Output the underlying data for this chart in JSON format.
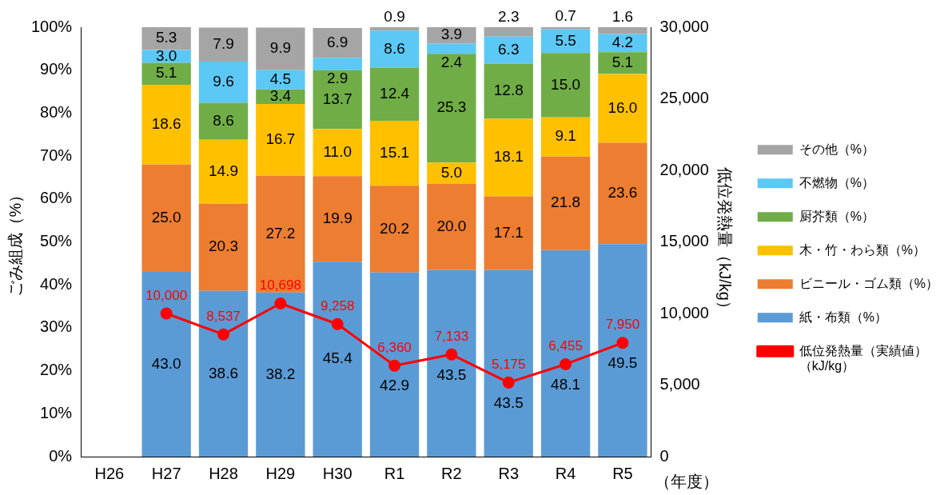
{
  "chart_data": {
    "type": "bar",
    "stacked": true,
    "xlabel": "（年度）",
    "ylabel": "ごみ組成（%）",
    "y2label": "低位発熱量（kJ/kg）",
    "categories": [
      "H26",
      "H27",
      "H28",
      "H29",
      "H30",
      "R1",
      "R2",
      "R3",
      "R4",
      "R5"
    ],
    "ylim": [
      0,
      100
    ],
    "yticks": [
      {
        "value": 0,
        "label": "0%"
      },
      {
        "value": 10,
        "label": "10%"
      },
      {
        "value": 20,
        "label": "20%"
      },
      {
        "value": 30,
        "label": "30%"
      },
      {
        "value": 40,
        "label": "40%"
      },
      {
        "value": 50,
        "label": "50%"
      },
      {
        "value": 60,
        "label": "60%"
      },
      {
        "value": 70,
        "label": "70%"
      },
      {
        "value": 80,
        "label": "80%"
      },
      {
        "value": 90,
        "label": "90%"
      },
      {
        "value": 100,
        "label": "100%"
      }
    ],
    "y2lim": [
      0,
      30000
    ],
    "y2ticks": [
      0,
      {
        "value": 5000,
        "label": "5,000"
      },
      {
        "value": 10000,
        "label": "10,000"
      },
      {
        "value": 15000,
        "label": "15,000"
      },
      {
        "value": 20000,
        "label": "20,000"
      },
      {
        "value": 25000,
        "label": "25,000"
      },
      {
        "value": 30000,
        "label": "30,000"
      }
    ],
    "grid": false,
    "legend": "right",
    "marker": "circle",
    "series": [
      {
        "name": "紙・布類（%）",
        "color": "#5b9bd5",
        "values": [
          null,
          43.0,
          38.6,
          38.2,
          45.4,
          42.9,
          43.5,
          43.5,
          48.1,
          49.5
        ],
        "value_labels": [
          null,
          "43.0",
          "38.6",
          "38.2",
          "45.4",
          "42.9",
          "43.5",
          "43.5",
          "48.1",
          "49.5"
        ]
      },
      {
        "name": "ビニール・ゴム類（%）",
        "color": "#ed7d31",
        "values": [
          null,
          25.0,
          20.3,
          27.2,
          19.9,
          20.2,
          20.0,
          17.1,
          21.8,
          23.6
        ],
        "value_labels": [
          null,
          "25.0",
          "20.3",
          "27.2",
          "19.9",
          "20.2",
          "20.0",
          "17.1",
          "21.8",
          "23.6"
        ]
      },
      {
        "name": "木・竹・わら類（%）",
        "color": "#ffc000",
        "values": [
          null,
          18.6,
          14.9,
          16.7,
          11.0,
          15.1,
          5.0,
          18.1,
          9.1,
          16.0
        ],
        "value_labels": [
          null,
          "18.6",
          "14.9",
          "16.7",
          "11.0",
          "15.1",
          "5.0",
          "18.1",
          "9.1",
          "16.0"
        ]
      },
      {
        "name": "厨芥類（%）",
        "color": "#70ad47",
        "values": [
          null,
          5.1,
          8.6,
          3.4,
          13.7,
          12.4,
          25.3,
          12.8,
          15.0,
          5.1
        ],
        "value_labels": [
          null,
          "5.1",
          "8.6",
          "3.4",
          "13.7",
          "12.4",
          "25.3",
          "12.8",
          "15.0",
          "5.1"
        ]
      },
      {
        "name": "不燃物（%）",
        "color": "#5bc8f5",
        "values": [
          null,
          3.0,
          9.6,
          4.5,
          2.9,
          8.6,
          2.4,
          6.3,
          5.5,
          4.2
        ],
        "value_labels": [
          null,
          "3.0",
          "9.6",
          "4.5",
          "2.9",
          "8.6",
          "2.4",
          "6.3",
          "5.5",
          "4.2"
        ]
      },
      {
        "name": "その他（%）",
        "color": "#a5a5a5",
        "values": [
          null,
          5.3,
          7.9,
          9.9,
          6.9,
          0.9,
          3.9,
          2.3,
          0.7,
          1.6
        ],
        "value_labels": [
          null,
          "5.3",
          "7.9",
          "9.9",
          "6.9",
          "0.9",
          "3.9",
          "2.3",
          "0.7",
          "1.6"
        ]
      },
      {
        "name": "低位発熱量（実績値）（kJ/kg）",
        "type": "line",
        "axis": "y2",
        "color": "#ff0000",
        "values": [
          null,
          10000,
          8537,
          10698,
          9258,
          6360,
          7133,
          5175,
          6455,
          7950
        ],
        "value_labels": [
          null,
          "10,000",
          "8,537",
          "10,698",
          "9,258",
          "6,360",
          "7,133",
          "5,175",
          "6,455",
          "7,950"
        ]
      }
    ]
  }
}
